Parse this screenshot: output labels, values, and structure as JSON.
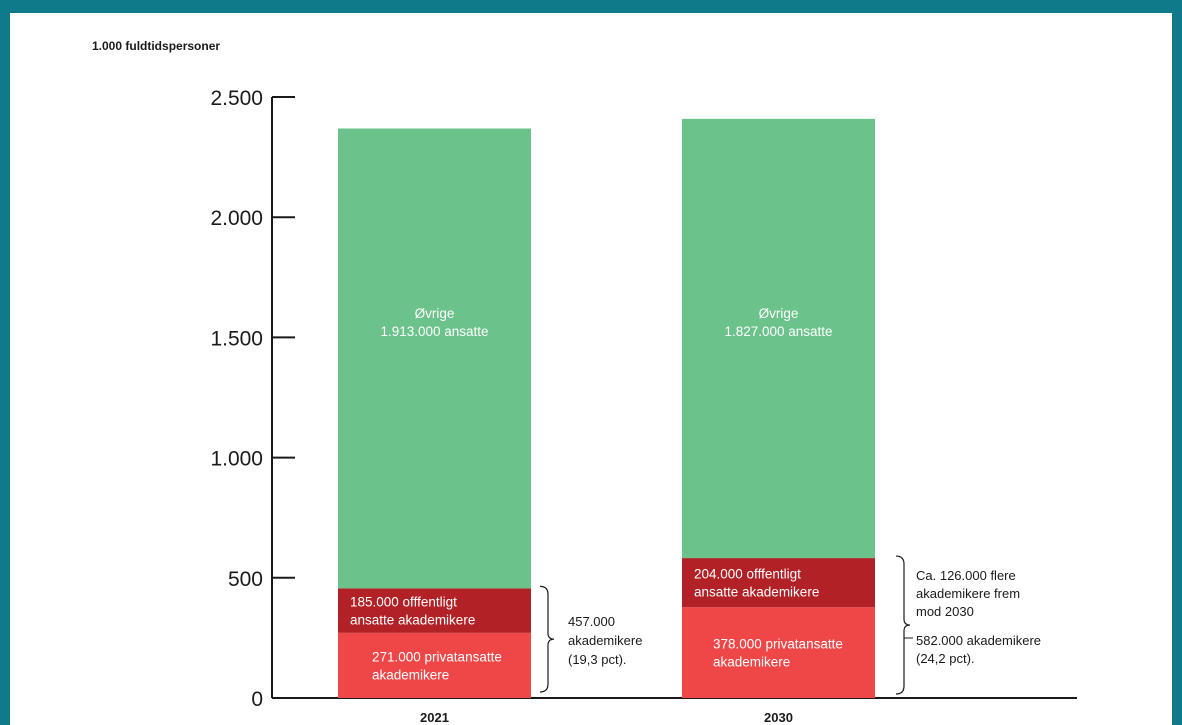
{
  "colors": {
    "frame": "#0f7b8a",
    "ovrige": "#6bc28a",
    "offentligt": "#b22126",
    "privat": "#ef4747"
  },
  "chart_data": {
    "type": "bar",
    "stacked": true,
    "unit_label": "1.000 fuldtidspersoner",
    "ylim": [
      0,
      2500
    ],
    "yticks": [
      0,
      500,
      1000,
      1500,
      2000,
      2500
    ],
    "ytick_labels": [
      "0",
      "500",
      "1.000",
      "1.500",
      "2.000",
      "2.500"
    ],
    "categories": [
      "2021",
      "2030"
    ],
    "series": [
      {
        "key": "privat",
        "values": [
          271,
          378
        ],
        "labels": [
          [
            "271.000 privatansatte",
            "akademikere"
          ],
          [
            "378.000 privatansatte",
            "akademikere"
          ]
        ]
      },
      {
        "key": "offentligt",
        "values": [
          185,
          204
        ],
        "labels": [
          [
            "185.000 offfentligt",
            "ansatte akademikere"
          ],
          [
            "204.000 offfentligt",
            "ansatte akademikere"
          ]
        ]
      },
      {
        "key": "ovrige",
        "values": [
          1913,
          1827
        ],
        "labels": [
          [
            "Øvrige",
            "1.913.000 ansatte"
          ],
          [
            "Øvrige",
            "1.827.000 ansatte"
          ]
        ]
      }
    ],
    "annotations": [
      {
        "lines": [
          "457.000",
          "akademikere",
          "(19,3 pct)."
        ]
      },
      {
        "lines": [
          "Ca. 126.000 flere",
          "akademikere frem",
          "mod 2030",
          "",
          "582.000 akademikere",
          "(24,2 pct)."
        ]
      }
    ]
  }
}
